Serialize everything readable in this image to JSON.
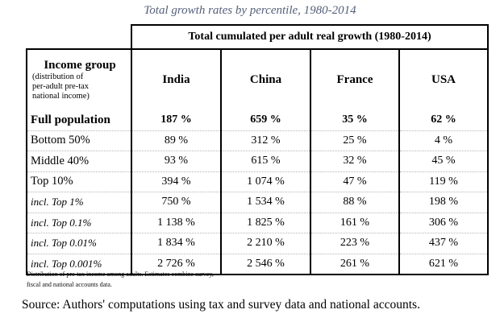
{
  "title": "Total growth rates by percentile, 1980-2014",
  "table": {
    "super_header": "Total cumulated per adult real growth (1980-2014)",
    "group_header": "Income group",
    "group_subheader": [
      "(distribution of",
      "per-adult pre-tax",
      "national income)"
    ],
    "columns": [
      "India",
      "China",
      "France",
      "USA"
    ],
    "rows": [
      {
        "label": "Full population",
        "values": [
          "187 %",
          "659 %",
          "35 %",
          "62 %"
        ]
      },
      {
        "label": "Bottom 50%",
        "values": [
          "89 %",
          "312 %",
          "25 %",
          "4 %"
        ]
      },
      {
        "label": "Middle 40%",
        "values": [
          "93 %",
          "615 %",
          "32 %",
          "45 %"
        ]
      },
      {
        "label": "Top 10%",
        "values": [
          "394 %",
          "1 074 %",
          "47 %",
          "119 %"
        ]
      },
      {
        "label": "incl. Top 1%",
        "values": [
          "750 %",
          "1 534 %",
          "88 %",
          "198 %"
        ]
      },
      {
        "label": "incl. Top 0.1%",
        "values": [
          "1 138 %",
          "1 825 %",
          "161 %",
          "306 %"
        ]
      },
      {
        "label": "incl. Top 0.01%",
        "values": [
          "1 834 %",
          "2 210 %",
          "223 %",
          "437 %"
        ]
      },
      {
        "label": "incl. Top 0.001%",
        "values": [
          "2 726 %",
          "2 546 %",
          "261 %",
          "621 %"
        ]
      }
    ]
  },
  "footnote": [
    "Distribution of pre-tax income among adults. Estimates combine survey,",
    "fiscal and national accounts data."
  ],
  "source": "Source: Authors' computations using tax and survey data and national accounts."
}
